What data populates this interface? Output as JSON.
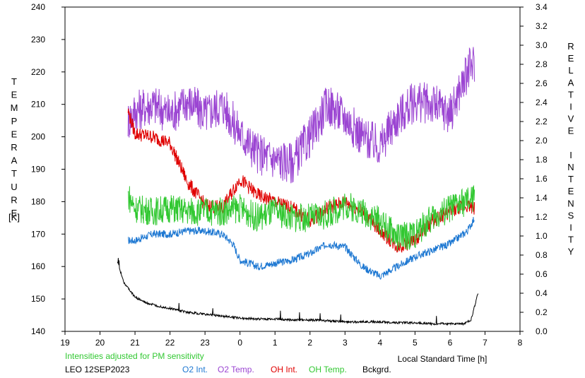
{
  "chart_data": {
    "type": "line",
    "x": [
      21.0,
      21.5,
      22.0,
      22.5,
      23.0,
      23.5,
      24.0,
      24.5,
      25.0,
      25.5,
      26.0,
      26.5,
      27.0,
      27.5,
      28.0,
      28.5,
      29.0,
      29.5,
      30.0,
      30.5
    ],
    "x_ticks": [
      "19",
      "20",
      "21",
      "22",
      "23",
      "0",
      "1",
      "2",
      "3",
      "4",
      "5",
      "6",
      "7",
      "8"
    ],
    "xlim": [
      19,
      32
    ],
    "xlabel": "Local Standard Time [h]",
    "ylabel_left": "TEMPERATURE [K]",
    "ylabel_right": "RELATIVE INTENSITY",
    "left_ylim": [
      140,
      240
    ],
    "left_ticks": [
      "140",
      "150",
      "160",
      "170",
      "180",
      "190",
      "200",
      "210",
      "220",
      "230",
      "240"
    ],
    "right_ylim": [
      0.0,
      3.4
    ],
    "right_ticks": [
      "0.0",
      "0.2",
      "0.4",
      "0.6",
      "0.8",
      "1.0",
      "1.2",
      "1.4",
      "1.6",
      "1.8",
      "2.0",
      "2.2",
      "2.4",
      "2.6",
      "2.8",
      "3.0",
      "3.2",
      "3.4"
    ],
    "grid": false,
    "series": [
      {
        "name": "O2 Int.",
        "axis": "left",
        "color": "#1e78d2",
        "x": [
          20.8,
          21.0,
          21.5,
          22.0,
          22.5,
          23.0,
          23.5,
          23.8,
          24.0,
          24.5,
          25.0,
          25.5,
          26.0,
          26.5,
          27.0,
          27.5,
          28.0,
          28.5,
          29.0,
          29.5,
          30.0,
          30.5,
          30.7
        ],
        "values": [
          168,
          168,
          170,
          170,
          171,
          171,
          170,
          167,
          162,
          160,
          161,
          162,
          164,
          167,
          166,
          160,
          157,
          160,
          163,
          165,
          167,
          171,
          175
        ]
      },
      {
        "name": "O2 Temp.",
        "axis": "left",
        "color": "#9b45d2",
        "x": [
          20.8,
          21.0,
          21.5,
          22.0,
          22.5,
          23.0,
          23.5,
          24.0,
          24.5,
          25.0,
          25.5,
          26.0,
          26.5,
          27.0,
          27.5,
          28.0,
          28.5,
          29.0,
          29.5,
          30.0,
          30.5,
          30.7
        ],
        "values": [
          205,
          208,
          210,
          207,
          211,
          207,
          210,
          201,
          195,
          193,
          192,
          200,
          210,
          206,
          200,
          197,
          206,
          211,
          210,
          207,
          220,
          223
        ]
      },
      {
        "name": "OH Int.",
        "axis": "left",
        "color": "#e00000",
        "x": [
          20.8,
          21.0,
          21.5,
          22.0,
          22.5,
          23.0,
          23.5,
          24.0,
          24.5,
          25.0,
          25.5,
          26.0,
          26.5,
          27.0,
          27.5,
          28.0,
          28.5,
          29.0,
          29.5,
          30.0,
          30.5,
          30.7
        ],
        "values": [
          208,
          201,
          200,
          198,
          186,
          179,
          178,
          187,
          182,
          180,
          178,
          174,
          178,
          180,
          177,
          171,
          166,
          168,
          174,
          177,
          179,
          178
        ]
      },
      {
        "name": "OH Temp.",
        "axis": "left",
        "color": "#32c832",
        "x": [
          20.8,
          21.0,
          21.5,
          22.0,
          22.5,
          23.0,
          23.5,
          24.0,
          24.5,
          25.0,
          25.5,
          26.0,
          26.5,
          27.0,
          27.5,
          28.0,
          28.5,
          29.0,
          29.5,
          30.0,
          30.5,
          30.7
        ],
        "values": [
          182,
          178,
          177,
          178,
          177,
          177,
          177,
          178,
          175,
          177,
          175,
          175,
          176,
          179,
          177,
          174,
          169,
          170,
          175,
          178,
          180,
          181
        ]
      },
      {
        "name": "Bckgrd.",
        "axis": "right",
        "color": "#000000",
        "x": [
          20.5,
          20.7,
          21.0,
          21.3,
          21.6,
          22.0,
          22.5,
          23.0,
          23.5,
          24.0,
          24.5,
          25.0,
          25.5,
          26.0,
          26.5,
          27.0,
          27.5,
          28.0,
          28.5,
          29.0,
          29.5,
          30.0,
          30.4,
          30.6,
          30.8
        ],
        "values": [
          0.72,
          0.5,
          0.36,
          0.3,
          0.27,
          0.24,
          0.2,
          0.18,
          0.16,
          0.14,
          0.13,
          0.13,
          0.12,
          0.12,
          0.11,
          0.1,
          0.1,
          0.1,
          0.09,
          0.09,
          0.08,
          0.08,
          0.08,
          0.12,
          0.4
        ]
      }
    ],
    "notes": {
      "sensitivity": "Intensities adjusted for PM sensitivity",
      "station": "LEO 12SEP2023",
      "sensitivity_color": "#32c832"
    }
  }
}
